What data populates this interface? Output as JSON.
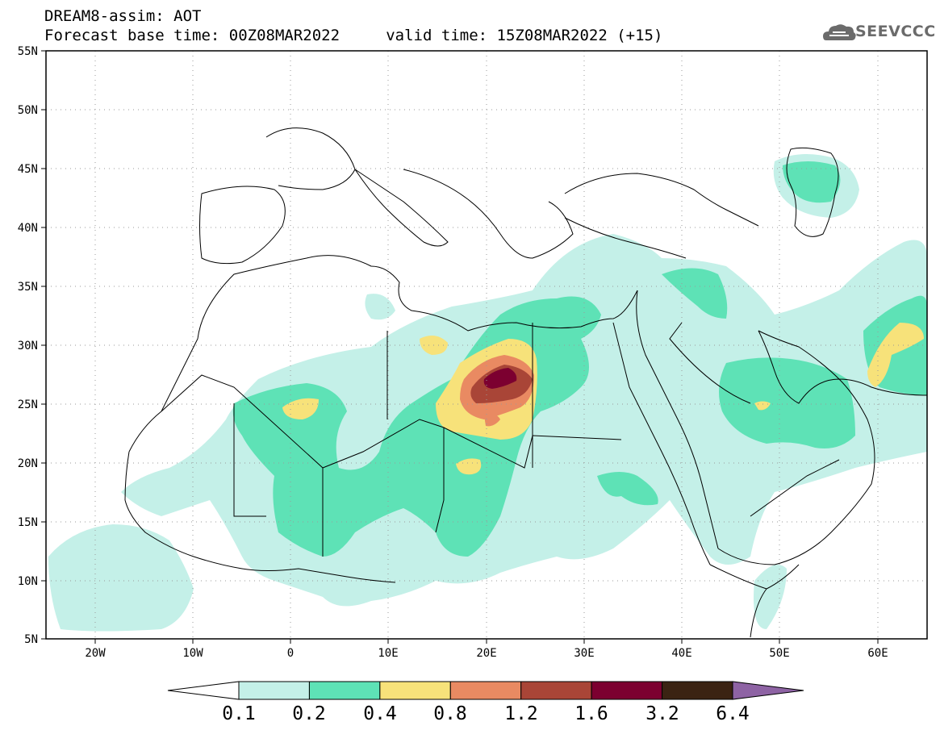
{
  "title": {
    "line1": "DREAM8-assim: AOT",
    "line2": "Forecast base time: 00Z08MAR2022     valid time: 15Z08MAR2022 (+15)"
  },
  "logo": {
    "text": "SEEVCCC",
    "icon": "cloud-logo-icon"
  },
  "map": {
    "variable": "AOT",
    "lon_range": [
      -25,
      65
    ],
    "lat_range": [
      5,
      55
    ],
    "grid": true,
    "lat_labels": [
      "55N",
      "50N",
      "45N",
      "40N",
      "35N",
      "30N",
      "25N",
      "20N",
      "15N",
      "10N",
      "5N"
    ],
    "lon_labels": [
      "20W",
      "10W",
      "0",
      "10E",
      "20E",
      "30E",
      "40E",
      "50E",
      "60E"
    ],
    "hotspot": {
      "label": "maximum dust over eastern Libya/Egypt border",
      "approx_lon": 22,
      "approx_lat": 27
    }
  },
  "colorbar": {
    "labels": [
      "0.1",
      "0.2",
      "0.4",
      "0.8",
      "1.2",
      "1.6",
      "3.2",
      "6.4"
    ],
    "colors": [
      "#c4f0e8",
      "#5ee2b6",
      "#f7e27a",
      "#e98a62",
      "#a94537",
      "#7c0030",
      "#3b2313",
      "#8e63a4"
    ],
    "under_color": "#ffffff",
    "over_color": "#8e63a4"
  }
}
